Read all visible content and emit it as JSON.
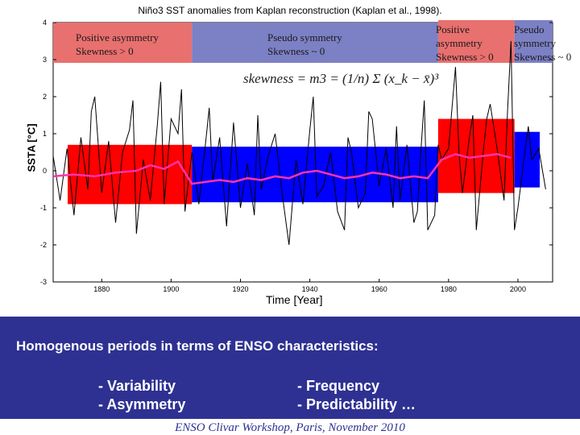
{
  "title": "Niño3 SST anomalies from Kaplan reconstruction (Kaplan et al., 1998).",
  "chart_data": {
    "type": "line",
    "xlabel": "Time [Year]",
    "ylabel": "SSTA [°C]",
    "xlim": [
      1866,
      2010
    ],
    "ylim": [
      -3,
      4
    ],
    "xticks": [
      "1880",
      "1900",
      "1920",
      "1940",
      "1960",
      "1980",
      "2000"
    ],
    "yticks": [
      "4",
      "3",
      "2",
      "1",
      "0",
      "-1",
      "-2",
      "-3"
    ],
    "regions": [
      {
        "label": "Positive asymmetry",
        "sublabel": "Skewness > 0",
        "start": 1856,
        "end": 1906,
        "color": "#e8706f",
        "bar_color": "#ff0000",
        "bar_range": [
          -0.9,
          0.7
        ]
      },
      {
        "label": "Pseudo symmetry",
        "sublabel": "Skewness ~ 0",
        "start": 1906,
        "end": 1977,
        "color": "#7c80c4",
        "bar_color": "#0000ff",
        "bar_range": [
          -0.85,
          0.65
        ]
      },
      {
        "label": "Positive asymmetry",
        "sublabel": "Skewness > 0",
        "start": 1977,
        "end": 1999,
        "color": "#e8706f",
        "bar_color": "#ff0000",
        "bar_range": [
          -0.6,
          1.4
        ]
      },
      {
        "label": "Pseudo symmetry",
        "sublabel": "Skewness ~ 0",
        "start": 1999,
        "end": 2010,
        "color": "#7c80c4",
        "bar_color": "#0000ff",
        "bar_range": [
          -0.45,
          1.05
        ]
      }
    ],
    "series": [
      {
        "color": "#ff33aa",
        "x": [
          1866,
          1872,
          1878,
          1884,
          1890,
          1894,
          1898,
          1902,
          1906,
          1910,
          1914,
          1918,
          1922,
          1926,
          1930,
          1934,
          1938,
          1942,
          1946,
          1950,
          1954,
          1958,
          1962,
          1966,
          1970,
          1974,
          1978,
          1982,
          1986,
          1990,
          1994,
          1998
        ],
        "values": [
          -0.15,
          -0.1,
          -0.15,
          -0.05,
          0.0,
          0.15,
          0.05,
          0.25,
          -0.35,
          -0.3,
          -0.25,
          -0.3,
          -0.2,
          -0.25,
          -0.15,
          -0.2,
          -0.05,
          0.0,
          -0.1,
          -0.2,
          -0.15,
          -0.05,
          -0.1,
          -0.2,
          -0.15,
          -0.2,
          0.3,
          0.45,
          0.35,
          0.4,
          0.45,
          0.35
        ]
      },
      {
        "color": "#000000",
        "x": [
          1866,
          1868,
          1870,
          1872,
          1874,
          1876,
          1877,
          1878,
          1880,
          1882,
          1884,
          1886,
          1888,
          1889,
          1890,
          1892,
          1894,
          1896,
          1897,
          1898,
          1900,
          1902,
          1903,
          1904,
          1906,
          1908,
          1910,
          1911,
          1912,
          1914,
          1916,
          1918,
          1920,
          1922,
          1924,
          1925,
          1926,
          1928,
          1930,
          1932,
          1934,
          1936,
          1938,
          1940,
          1941,
          1942,
          1944,
          1946,
          1948,
          1950,
          1951,
          1952,
          1954,
          1956,
          1957,
          1958,
          1960,
          1962,
          1964,
          1965,
          1966,
          1968,
          1970,
          1971,
          1972,
          1973,
          1974,
          1976,
          1977,
          1978,
          1980,
          1982,
          1983,
          1984,
          1986,
          1987,
          1988,
          1990,
          1991,
          1992,
          1994,
          1996,
          1997,
          1998,
          1999,
          2000,
          2002,
          2003,
          2004,
          2006,
          2008
        ],
        "values": [
          0.4,
          -0.8,
          0.6,
          -1.2,
          0.9,
          -0.5,
          1.6,
          2.0,
          -0.6,
          0.8,
          -1.4,
          0.5,
          1.1,
          1.9,
          -1.7,
          0.3,
          -0.8,
          1.2,
          2.4,
          -0.9,
          1.4,
          1.0,
          2.2,
          -1.1,
          0.5,
          -0.9,
          0.8,
          1.7,
          -0.3,
          0.9,
          -1.5,
          1.3,
          -1.0,
          0.2,
          -1.2,
          1.5,
          -0.5,
          0.4,
          1.0,
          -0.6,
          -2.0,
          0.3,
          -0.9,
          1.1,
          2.0,
          -0.7,
          -0.4,
          0.5,
          -1.1,
          -1.6,
          0.9,
          0.5,
          -1.0,
          -0.6,
          1.6,
          1.4,
          -0.4,
          0.6,
          -1.0,
          1.2,
          -0.8,
          0.7,
          -1.4,
          -1.1,
          0.5,
          1.9,
          -1.6,
          -1.2,
          0.7,
          0.3,
          0.6,
          2.8,
          0.5,
          -0.6,
          0.9,
          1.5,
          -1.6,
          0.5,
          1.4,
          1.8,
          0.6,
          -0.8,
          1.6,
          3.5,
          -1.6,
          -1.0,
          0.5,
          1.2,
          0.3,
          0.6,
          -0.5
        ]
      }
    ],
    "annotation": "skewness = m3 = (1/n) Σ (x_k − x̄)³"
  },
  "bottom": {
    "heading": "Homogenous periods in terms of ENSO characteristics:",
    "left_items": [
      "- Variability",
      "- Asymmetry"
    ],
    "right_items": [
      "- Frequency",
      "- Predictability …"
    ]
  },
  "footer": "ENSO Clivar Workshop, Paris, November 2010"
}
